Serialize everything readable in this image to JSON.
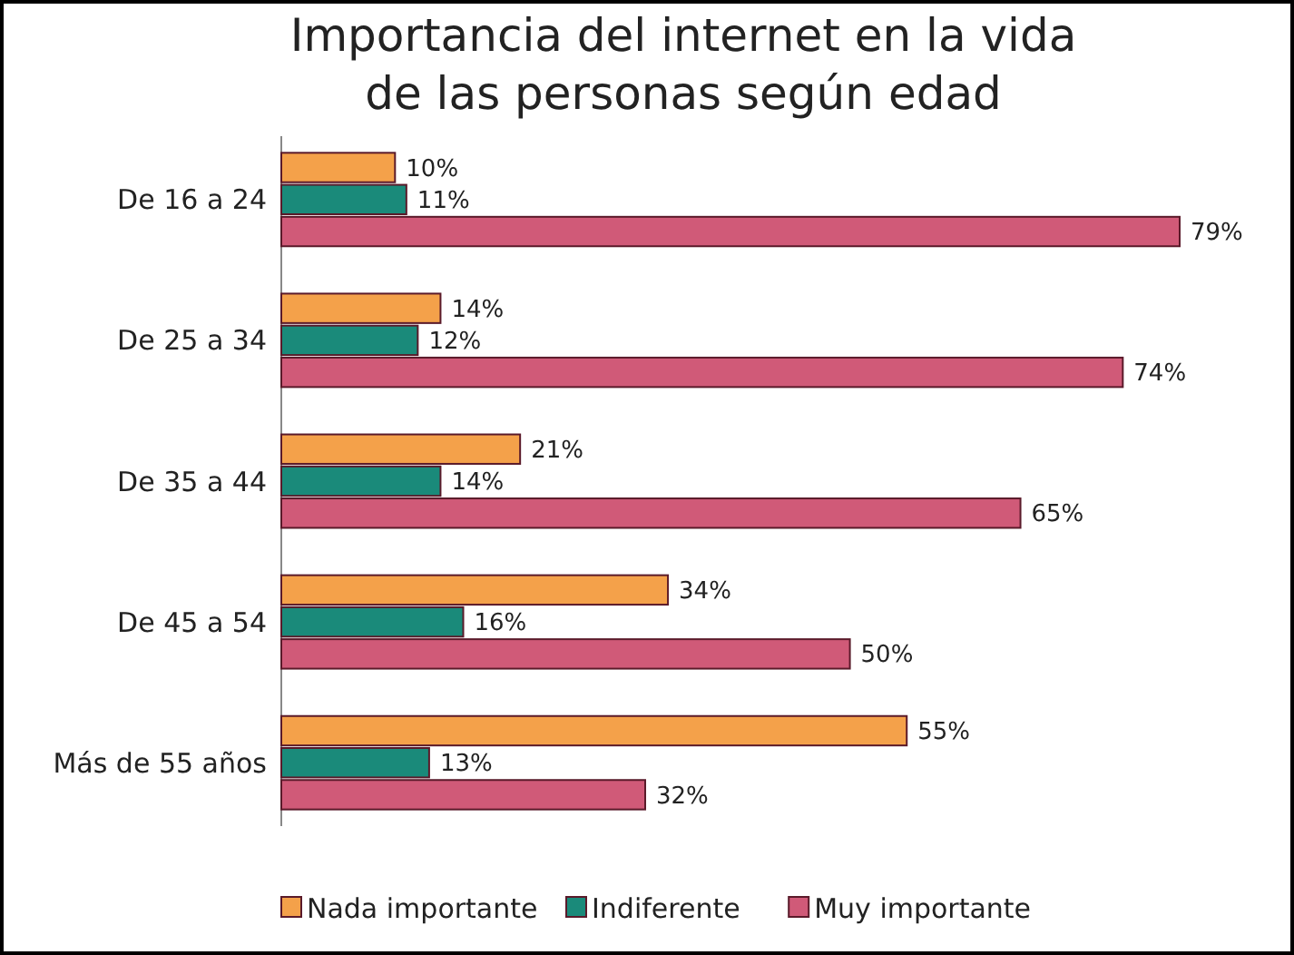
{
  "chart_data": {
    "type": "bar",
    "orientation": "horizontal",
    "title": "Importancia del internet en la vida\nde las personas según edad",
    "categories": [
      "De 16 a 24",
      "De 25 a 34",
      "De 35 a 44",
      "De 45 a 54",
      "Más de 55 años"
    ],
    "series": [
      {
        "name": "Nada importante",
        "color": "#f4a14a",
        "values": [
          10,
          14,
          21,
          34,
          55
        ],
        "value_labels": [
          "10%",
          "14%",
          "21%",
          "34%",
          "55%"
        ]
      },
      {
        "name": "Indiferente",
        "color": "#1a8a7a",
        "values": [
          11,
          12,
          14,
          16,
          13
        ],
        "value_labels": [
          "11%",
          "12%",
          "14%",
          "16%",
          "13%"
        ]
      },
      {
        "name": "Muy importante",
        "color": "#d05a78",
        "values": [
          79,
          74,
          65,
          50,
          32
        ],
        "value_labels": [
          "79%",
          "74%",
          "65%",
          "50%",
          "32%"
        ]
      }
    ],
    "legend": "bottom"
  }
}
